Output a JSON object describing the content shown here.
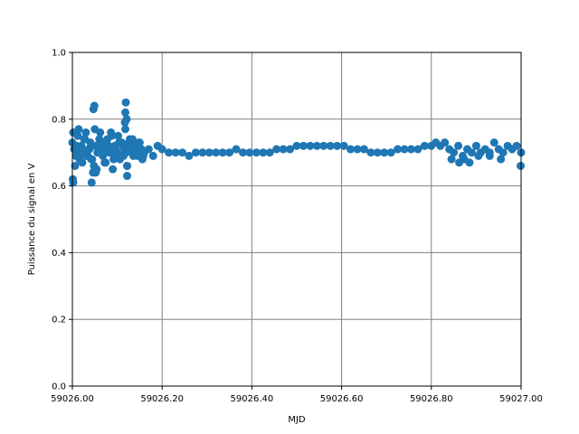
{
  "chart_data": {
    "type": "scatter",
    "xlabel": "MJD",
    "ylabel": "Puissance du signal en V",
    "xlim": [
      59026.0,
      59027.0
    ],
    "ylim": [
      0.0,
      1.0
    ],
    "x_ticks": [
      "59026.00",
      "59026.20",
      "59026.40",
      "59026.60",
      "59026.80",
      "59027.00"
    ],
    "y_ticks": [
      "0.0",
      "0.2",
      "0.4",
      "0.6",
      "0.8",
      "1.0"
    ],
    "grid": true,
    "marker_color": "#1f77b4",
    "grid_color": "#808080",
    "series": [
      {
        "x": [
          59026.0,
          59026.004,
          59026.008,
          59026.012,
          59026.016,
          59026.02,
          59026.024,
          59026.028,
          59026.032,
          59026.036,
          59026.04,
          59026.044,
          59026.048,
          59026.052,
          59026.056,
          59026.06,
          59026.064,
          59026.068,
          59026.072,
          59026.076,
          59026.08,
          59026.084,
          59026.088,
          59026.092,
          59026.096,
          59026.1,
          59026.104,
          59026.108,
          59026.112,
          59026.116,
          59026.12,
          59026.124,
          59026.128,
          59026.132,
          59026.136,
          59026.14,
          59026.144,
          59026.148,
          59026.152,
          59026.156,
          59026.16,
          59026.17,
          59026.18,
          59026.19,
          59026.2,
          59026.215,
          59026.23,
          59026.245,
          59026.26,
          59026.275,
          59026.29,
          59026.305,
          59026.32,
          59026.335,
          59026.35,
          59026.365,
          59026.38,
          59026.395,
          59026.41,
          59026.425,
          59026.44,
          59026.455,
          59026.47,
          59026.485,
          59026.5,
          59026.515,
          59026.53,
          59026.545,
          59026.56,
          59026.575,
          59026.59,
          59026.605,
          59026.62,
          59026.635,
          59026.65,
          59026.665,
          59026.68,
          59026.695,
          59026.71,
          59026.725,
          59026.74,
          59026.755,
          59026.77,
          59026.785,
          59026.8,
          59026.81,
          59026.82,
          59026.83,
          59026.84,
          59026.85,
          59026.86,
          59026.87,
          59026.88,
          59026.89,
          59026.9,
          59026.91,
          59026.92,
          59026.93,
          59026.94,
          59026.95,
          59026.96,
          59026.97,
          59026.98,
          59026.99,
          59027.0,
          59026.002,
          59026.006,
          59026.01,
          59026.014,
          59026.018,
          59026.022,
          59026.026,
          59026.03,
          59026.034,
          59026.038,
          59026.042,
          59026.046,
          59026.05,
          59026.054,
          59026.058,
          59026.062,
          59026.066,
          59026.07,
          59026.074,
          59026.078,
          59026.082,
          59026.086,
          59026.09,
          59026.094,
          59026.098,
          59026.102,
          59026.106,
          59026.11,
          59026.114,
          59026.118,
          59026.122,
          59026.126,
          59026.13,
          59026.134,
          59026.138,
          59026.142,
          59026.146,
          59026.15,
          59026.154,
          59026.158,
          59026.047,
          59026.049,
          59026.117,
          59026.118,
          59026.119,
          59026.121,
          59026.001,
          59026.002,
          59026.043,
          59026.052,
          59026.122,
          59026.122,
          59026.862,
          59026.873,
          59026.905,
          59026.955,
          59026.999,
          59026.845,
          59026.885,
          59026.93
        ],
        "y": [
          0.73,
          0.71,
          0.69,
          0.75,
          0.68,
          0.72,
          0.7,
          0.74,
          0.69,
          0.71,
          0.73,
          0.68,
          0.66,
          0.72,
          0.7,
          0.74,
          0.71,
          0.69,
          0.67,
          0.73,
          0.72,
          0.7,
          0.75,
          0.68,
          0.71,
          0.7,
          0.73,
          0.69,
          0.72,
          0.71,
          0.7,
          0.72,
          0.74,
          0.71,
          0.69,
          0.72,
          0.7,
          0.73,
          0.71,
          0.68,
          0.7,
          0.71,
          0.69,
          0.72,
          0.71,
          0.7,
          0.7,
          0.7,
          0.69,
          0.7,
          0.7,
          0.7,
          0.7,
          0.7,
          0.7,
          0.71,
          0.7,
          0.7,
          0.7,
          0.7,
          0.7,
          0.71,
          0.71,
          0.71,
          0.72,
          0.72,
          0.72,
          0.72,
          0.72,
          0.72,
          0.72,
          0.72,
          0.71,
          0.71,
          0.71,
          0.7,
          0.7,
          0.7,
          0.7,
          0.71,
          0.71,
          0.71,
          0.71,
          0.72,
          0.72,
          0.73,
          0.72,
          0.73,
          0.71,
          0.7,
          0.72,
          0.69,
          0.71,
          0.7,
          0.72,
          0.7,
          0.71,
          0.69,
          0.73,
          0.71,
          0.7,
          0.72,
          0.71,
          0.72,
          0.7,
          0.76,
          0.66,
          0.72,
          0.77,
          0.7,
          0.67,
          0.74,
          0.76,
          0.69,
          0.71,
          0.68,
          0.64,
          0.77,
          0.65,
          0.72,
          0.76,
          0.73,
          0.71,
          0.67,
          0.74,
          0.7,
          0.76,
          0.65,
          0.72,
          0.7,
          0.75,
          0.68,
          0.73,
          0.69,
          0.77,
          0.66,
          0.73,
          0.72,
          0.74,
          0.7,
          0.72,
          0.69,
          0.73,
          0.71,
          0.69,
          0.83,
          0.84,
          0.79,
          0.82,
          0.85,
          0.8,
          0.62,
          0.61,
          0.61,
          0.64,
          0.63,
          0.66,
          0.67,
          0.68,
          0.69,
          0.68,
          0.66,
          0.68,
          0.67,
          0.7
        ]
      }
    ]
  }
}
